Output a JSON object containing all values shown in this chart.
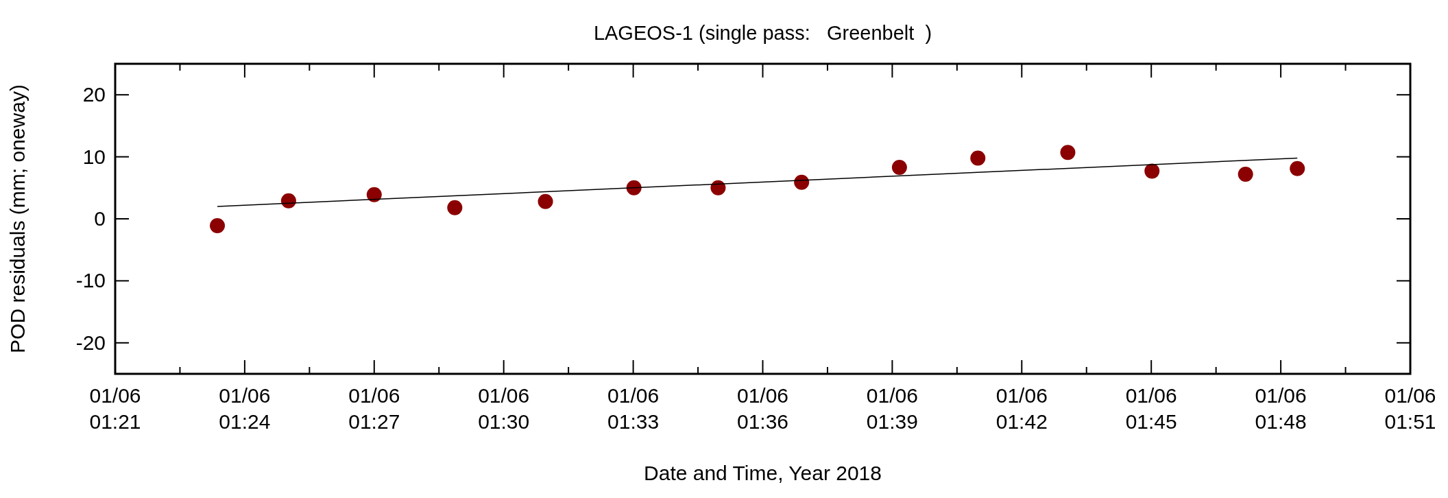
{
  "chart_data": {
    "type": "scatter",
    "title": "LAGEOS-1 (single pass:   Greenbelt  )",
    "xlabel": "Date and Time, Year 2018",
    "ylabel": "POD residuals (mm; oneway)",
    "series": [
      {
        "color": "#8b0000",
        "marker": "circle",
        "x": [
          "2018-01-06T01:23:22",
          "2018-01-06T01:25:01",
          "2018-01-06T01:27:00",
          "2018-01-06T01:28:52",
          "2018-01-06T01:30:58",
          "2018-01-06T01:33:01",
          "2018-01-06T01:34:58",
          "2018-01-06T01:36:54",
          "2018-01-06T01:39:10",
          "2018-01-06T01:40:59",
          "2018-01-06T01:43:04",
          "2018-01-06T01:45:01",
          "2018-01-06T01:47:11",
          "2018-01-06T01:48:23"
        ],
        "values": [
          -1.1,
          2.9,
          3.9,
          1.8,
          2.8,
          5.0,
          5.0,
          5.9,
          8.3,
          9.8,
          10.7,
          7.7,
          7.2,
          8.1
        ]
      },
      {
        "type": "line",
        "color": "#000000",
        "x": [
          "2018-01-06T01:23:22",
          "2018-01-06T01:48:23"
        ],
        "values": [
          2.0,
          9.8
        ]
      }
    ],
    "xlim": [
      "2018-01-06T01:21",
      "2018-01-06T01:51"
    ],
    "xticks": [
      {
        "value": "2018-01-06T01:21",
        "label": "01/06\n01:21"
      },
      {
        "value": "2018-01-06T01:22:30",
        "label": null
      },
      {
        "value": "2018-01-06T01:24",
        "label": "01/06\n01:24"
      },
      {
        "value": "2018-01-06T01:25:30",
        "label": null
      },
      {
        "value": "2018-01-06T01:27",
        "label": "01/06\n01:27"
      },
      {
        "value": "2018-01-06T01:28:30",
        "label": null
      },
      {
        "value": "2018-01-06T01:30",
        "label": "01/06\n01:30"
      },
      {
        "value": "2018-01-06T01:31:30",
        "label": null
      },
      {
        "value": "2018-01-06T01:33",
        "label": "01/06\n01:33"
      },
      {
        "value": "2018-01-06T01:34:30",
        "label": null
      },
      {
        "value": "2018-01-06T01:36",
        "label": "01/06\n01:36"
      },
      {
        "value": "2018-01-06T01:37:30",
        "label": null
      },
      {
        "value": "2018-01-06T01:39",
        "label": "01/06\n01:39"
      },
      {
        "value": "2018-01-06T01:40:30",
        "label": null
      },
      {
        "value": "2018-01-06T01:42",
        "label": "01/06\n01:42"
      },
      {
        "value": "2018-01-06T01:43:30",
        "label": null
      },
      {
        "value": "2018-01-06T01:45",
        "label": "01/06\n01:45"
      },
      {
        "value": "2018-01-06T01:46:30",
        "label": null
      },
      {
        "value": "2018-01-06T01:48",
        "label": "01/06\n01:48"
      },
      {
        "value": "2018-01-06T01:49:30",
        "label": null
      },
      {
        "value": "2018-01-06T01:51",
        "label": "01/06\n01:51"
      }
    ],
    "ylim": [
      -25,
      25
    ],
    "yticks": [
      -20,
      -10,
      0,
      10,
      20
    ],
    "grid": false
  }
}
